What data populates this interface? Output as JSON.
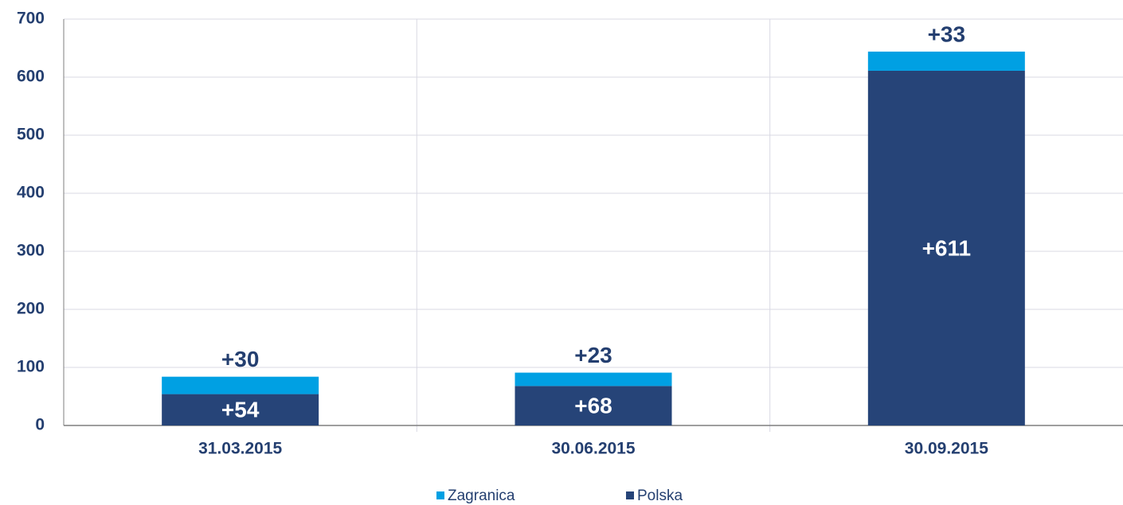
{
  "chart_data": {
    "type": "stacked_bar",
    "categories": [
      "31.03.2015",
      "30.06.2015",
      "30.09.2015"
    ],
    "series": [
      {
        "name": "Polska",
        "color": "#264478",
        "values": [
          54,
          68,
          611
        ],
        "value_labels": [
          "+54",
          "+68",
          "+611"
        ]
      },
      {
        "name": "Zagranica",
        "color": "#00a0e3",
        "values": [
          30,
          23,
          33
        ],
        "value_labels": [
          "+30",
          "+23",
          "+33"
        ]
      }
    ],
    "ylim": [
      0,
      700
    ],
    "yticks": [
      0,
      100,
      200,
      300,
      400,
      500,
      600,
      700
    ],
    "grid": true,
    "legend": "bottom"
  }
}
